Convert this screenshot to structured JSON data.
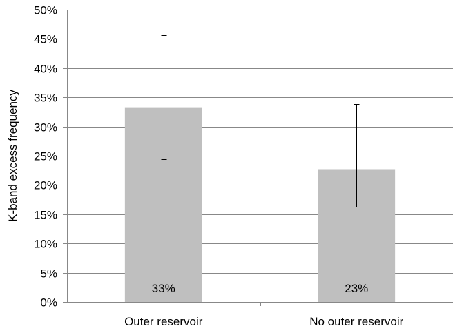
{
  "chart_data": {
    "type": "bar",
    "title": "",
    "xlabel": "",
    "ylabel": "K-band excess frequency",
    "categories": [
      "Outer reservoir",
      "No outer reservoir"
    ],
    "values": [
      33.3,
      22.7
    ],
    "value_labels": [
      "33%",
      "23%"
    ],
    "error_bars": [
      {
        "low": 24.4,
        "high": 45.6
      },
      {
        "low": 16.3,
        "high": 33.8
      }
    ],
    "ylim": [
      0,
      50
    ],
    "yticks": [
      0,
      5,
      10,
      15,
      20,
      25,
      30,
      35,
      40,
      45,
      50
    ],
    "ytick_labels": [
      "0%",
      "5%",
      "10%",
      "15%",
      "20%",
      "25%",
      "30%",
      "35%",
      "40%",
      "45%",
      "50%"
    ],
    "grid": true,
    "legend": "none",
    "colors": {
      "bar": "#bfbfbf",
      "grid": "#888888",
      "axis": "#888888",
      "error_bar": "#000000"
    }
  }
}
